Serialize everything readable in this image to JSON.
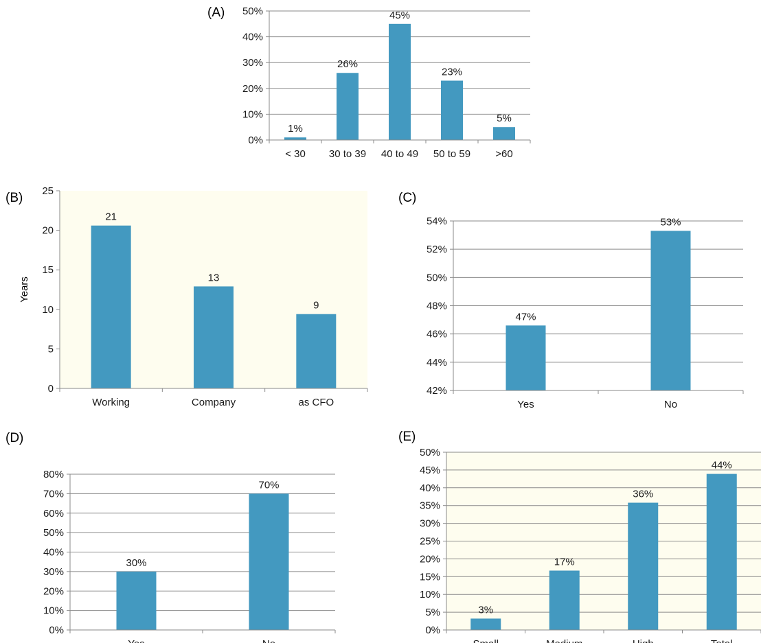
{
  "chart_data": [
    {
      "panel": "(A)",
      "type": "bar",
      "categories": [
        "< 30",
        "30 to 39",
        "40 to 49",
        "50 to 59",
        ">60"
      ],
      "values": [
        1,
        26,
        45,
        23,
        5
      ],
      "data_labels": [
        "1%",
        "26%",
        "45%",
        "23%",
        "5%"
      ],
      "ylim": [
        0,
        50
      ],
      "yticks": [
        0,
        10,
        20,
        30,
        40,
        50
      ],
      "ytick_labels": [
        "0%",
        "10%",
        "20%",
        "30%",
        "40%",
        "50%"
      ],
      "ylabel": "",
      "plot_background": "#ffffff",
      "bar_color": "#4399c0",
      "grid": true
    },
    {
      "panel": "(B)",
      "type": "bar",
      "categories": [
        "Working",
        "Company",
        "as CFO"
      ],
      "values": [
        20.6,
        12.9,
        9.4
      ],
      "data_labels": [
        "21",
        "13",
        "9"
      ],
      "ylim": [
        0,
        25
      ],
      "yticks": [
        0,
        5,
        10,
        15,
        20,
        25
      ],
      "ytick_labels": [
        "0",
        "5",
        "10",
        "15",
        "20",
        "25"
      ],
      "ylabel": "Years",
      "plot_background": "#fefdef",
      "bar_color": "#4399c0",
      "grid": false
    },
    {
      "panel": "(C)",
      "type": "bar",
      "categories": [
        "Yes",
        "No"
      ],
      "values": [
        46.6,
        53.3
      ],
      "data_labels": [
        "47%",
        "53%"
      ],
      "ylim": [
        42,
        54
      ],
      "yticks": [
        42,
        44,
        46,
        48,
        50,
        52,
        54
      ],
      "ytick_labels": [
        "42%",
        "44%",
        "46%",
        "48%",
        "50%",
        "52%",
        "54%"
      ],
      "ylabel": "",
      "plot_background": "#ffffff",
      "bar_color": "#4399c0",
      "grid": true
    },
    {
      "panel": "(D)",
      "type": "bar",
      "categories": [
        "Yes",
        "No"
      ],
      "values": [
        30,
        70
      ],
      "data_labels": [
        "30%",
        "70%"
      ],
      "ylim": [
        0,
        80
      ],
      "yticks": [
        0,
        10,
        20,
        30,
        40,
        50,
        60,
        70,
        80
      ],
      "ytick_labels": [
        "0%",
        "10%",
        "20%",
        "30%",
        "40%",
        "50%",
        "60%",
        "70%",
        "80%"
      ],
      "ylabel": "",
      "plot_background": "#ffffff",
      "bar_color": "#4399c0",
      "grid": true
    },
    {
      "panel": "(E)",
      "type": "bar",
      "categories": [
        "Small",
        "Medium",
        "High",
        "Total"
      ],
      "values": [
        3.2,
        16.7,
        35.8,
        43.9
      ],
      "data_labels": [
        "3%",
        "17%",
        "36%",
        "44%"
      ],
      "ylim": [
        0,
        50
      ],
      "yticks": [
        0,
        5,
        10,
        15,
        20,
        25,
        30,
        35,
        40,
        45,
        50
      ],
      "ytick_labels": [
        "0%",
        "5%",
        "10%",
        "15%",
        "20%",
        "25%",
        "30%",
        "35%",
        "40%",
        "45%",
        "50%"
      ],
      "ylabel": "",
      "plot_background": "#fefdef",
      "bar_color": "#4399c0",
      "grid": true
    }
  ]
}
